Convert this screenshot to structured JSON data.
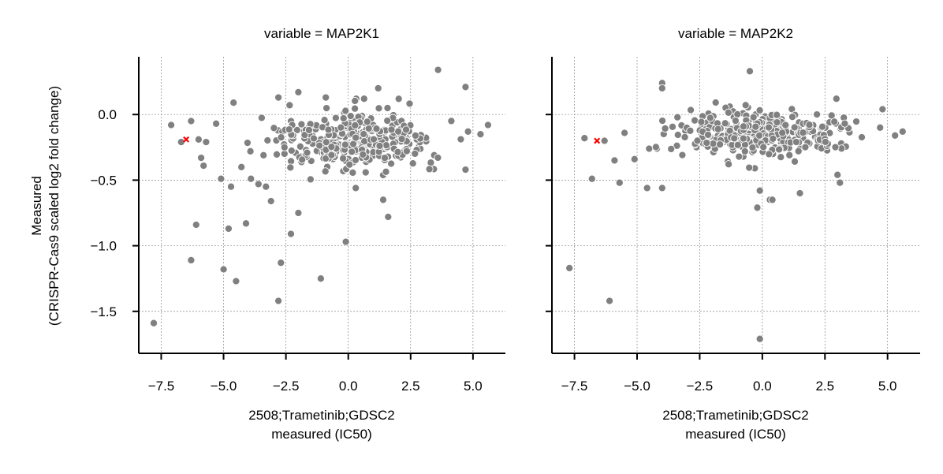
{
  "chart_data": [
    {
      "type": "scatter",
      "title": "variable = MAP2K1",
      "xlabel_line1": "2508;Trametinib;GDSC2",
      "xlabel_line2": "measured (IC50)",
      "ylabel_line1": "Measured",
      "ylabel_line2": "(CRISPR-Cas9 scaled log2 fold change)",
      "xlim": [
        -8.4,
        6.3
      ],
      "ylim": [
        -1.82,
        0.44
      ],
      "xticks": [
        -7.5,
        -5.0,
        -2.5,
        0.0,
        2.5,
        5.0
      ],
      "xtick_labels": [
        "−7.5",
        "−5.0",
        "−2.5",
        "0.0",
        "2.5",
        "5.0"
      ],
      "yticks": [
        0.0,
        -0.5,
        -1.0,
        -1.5
      ],
      "ytick_labels": [
        "0.0",
        "−0.5",
        "−1.0",
        "−1.5"
      ],
      "grid": true,
      "point_color": "#808080",
      "highlight_color": "#ff0000",
      "highlight_point": {
        "x": -6.5,
        "y": -0.19
      },
      "points": [
        [
          -7.8,
          -1.59
        ],
        [
          -7.1,
          -0.08
        ],
        [
          -6.7,
          -0.21
        ],
        [
          -6.3,
          -0.05
        ],
        [
          -6.3,
          -1.11
        ],
        [
          -6.1,
          -0.84
        ],
        [
          -6.0,
          -0.19
        ],
        [
          -5.9,
          -0.33
        ],
        [
          -5.8,
          -0.39
        ],
        [
          -5.7,
          -0.21
        ],
        [
          -5.3,
          -0.07
        ],
        [
          -5.1,
          -0.49
        ],
        [
          -5.0,
          -1.18
        ],
        [
          -4.8,
          -0.87
        ],
        [
          -4.7,
          -0.55
        ],
        [
          -4.5,
          -1.27
        ],
        [
          -4.6,
          0.09
        ],
        [
          -4.1,
          -0.83
        ],
        [
          -3.9,
          -0.49
        ],
        [
          -3.6,
          -0.53
        ],
        [
          -3.3,
          -0.55
        ],
        [
          -3.1,
          -0.66
        ],
        [
          -2.8,
          0.13
        ],
        [
          -2.8,
          -1.42
        ],
        [
          -2.7,
          -1.13
        ],
        [
          -2.3,
          -0.91
        ],
        [
          -2.0,
          -0.75
        ],
        [
          -2.0,
          0.17
        ],
        [
          -1.7,
          -0.13
        ],
        [
          -1.1,
          -1.25
        ],
        [
          -0.9,
          0.13
        ],
        [
          -0.1,
          -0.97
        ],
        [
          0.3,
          -0.56
        ],
        [
          1.4,
          -0.65
        ],
        [
          1.6,
          -0.78
        ],
        [
          1.2,
          0.2
        ],
        [
          3.6,
          0.34
        ],
        [
          4.7,
          0.21
        ],
        [
          5.6,
          -0.08
        ],
        [
          5.3,
          -0.15
        ],
        [
          4.8,
          -0.13
        ],
        [
          4.7,
          -0.42
        ],
        [
          2.3,
          -0.21
        ],
        [
          1.0,
          -0.08
        ],
        [
          -0.5,
          -0.12
        ]
      ],
      "cloud": {
        "seed": 11,
        "count": 330,
        "x_range": [
          -4.7,
          4.9
        ],
        "y_center": -0.19,
        "y_spread": 0.11
      }
    },
    {
      "type": "scatter",
      "title": "variable = MAP2K2",
      "xlabel_line1": "2508;Trametinib;GDSC2",
      "xlabel_line2": "measured (IC50)",
      "xlim": [
        -8.4,
        6.3
      ],
      "ylim": [
        -1.82,
        0.44
      ],
      "xticks": [
        -7.5,
        -5.0,
        -2.5,
        0.0,
        2.5,
        5.0
      ],
      "xtick_labels": [
        "−7.5",
        "−5.0",
        "−2.5",
        "0.0",
        "2.5",
        "5.0"
      ],
      "yticks": [
        0.0,
        -0.5,
        -1.0,
        -1.5
      ],
      "grid": true,
      "point_color": "#808080",
      "highlight_color": "#ff0000",
      "highlight_point": {
        "x": -6.6,
        "y": -0.2
      },
      "points": [
        [
          -7.7,
          -1.17
        ],
        [
          -7.1,
          -0.18
        ],
        [
          -6.8,
          -0.49
        ],
        [
          -6.3,
          -0.2
        ],
        [
          -6.1,
          -1.42
        ],
        [
          -5.9,
          -0.35
        ],
        [
          -5.7,
          -0.52
        ],
        [
          -5.5,
          -0.14
        ],
        [
          -5.1,
          -0.34
        ],
        [
          -4.6,
          -0.56
        ],
        [
          -4.0,
          -0.56
        ],
        [
          -4.0,
          0.24
        ],
        [
          -4.0,
          0.2
        ],
        [
          -0.5,
          0.33
        ],
        [
          -0.3,
          -0.41
        ],
        [
          -0.2,
          -0.71
        ],
        [
          -0.1,
          -0.58
        ],
        [
          -0.1,
          -1.71
        ],
        [
          0.3,
          -0.65
        ],
        [
          1.5,
          -0.6
        ],
        [
          0.4,
          -0.65
        ],
        [
          -1.3,
          0.06
        ],
        [
          3.0,
          -0.46
        ],
        [
          3.1,
          -0.52
        ],
        [
          5.6,
          -0.13
        ],
        [
          5.3,
          -0.16
        ],
        [
          4.8,
          0.04
        ],
        [
          4.7,
          -0.1
        ]
      ],
      "cloud": {
        "seed": 29,
        "count": 360,
        "x_range": [
          -5.0,
          4.8
        ],
        "y_center": -0.15,
        "y_spread": 0.085
      }
    }
  ]
}
